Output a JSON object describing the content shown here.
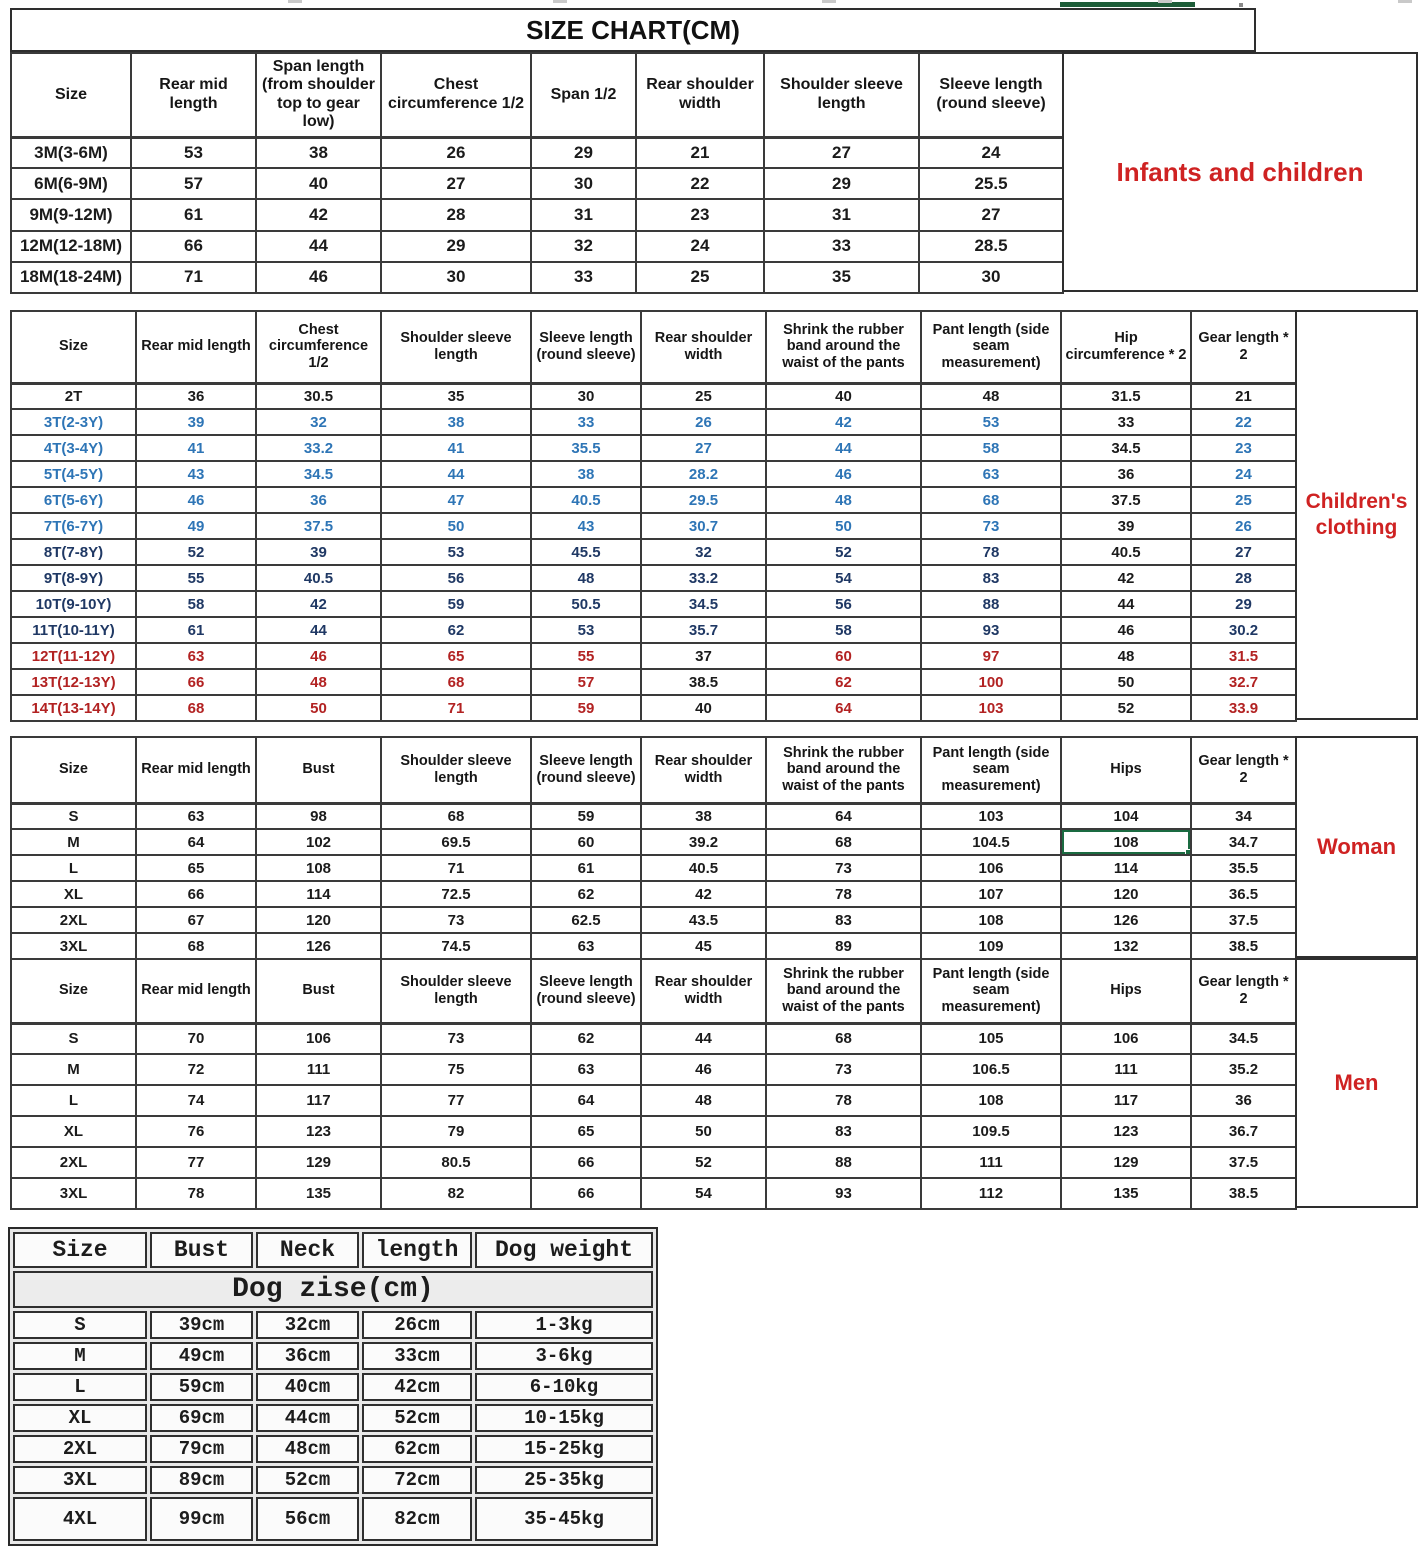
{
  "size_chart_title": "SIZE CHART(CM)",
  "colors": {
    "black": "#1b1b1b",
    "blue": "#2e75b6",
    "navy": "#1f3864",
    "red": "#b22222"
  },
  "infants": {
    "label": "Infants and children",
    "headers": [
      "Size",
      "Rear mid length",
      "Span length (from shoulder top to gear low)",
      "Chest circumference 1/2",
      "Span 1/2",
      "Rear shoulder width",
      "Shoulder sleeve length",
      "Sleeve length (round sleeve)"
    ],
    "rows": [
      [
        "3M(3-6M)",
        "53",
        "38",
        "26",
        "29",
        "21",
        "27",
        "24"
      ],
      [
        "6M(6-9M)",
        "57",
        "40",
        "27",
        "30",
        "22",
        "29",
        "25.5"
      ],
      [
        "9M(9-12M)",
        "61",
        "42",
        "28",
        "31",
        "23",
        "31",
        "27"
      ],
      [
        "12M(12-18M)",
        "66",
        "44",
        "29",
        "32",
        "24",
        "33",
        "28.5"
      ],
      [
        "18M(18-24M)",
        "71",
        "46",
        "30",
        "33",
        "25",
        "35",
        "30"
      ]
    ]
  },
  "children": {
    "label": "Children's clothing",
    "headers": [
      "Size",
      "Rear mid length",
      "Chest circumference 1/2",
      "Shoulder sleeve length",
      "Sleeve length (round sleeve)",
      "Rear shoulder width",
      "Shrink the rubber band around the waist of the pants",
      "Pant length (side seam measurement)",
      "Hip circumference * 2",
      "Gear length * 2"
    ],
    "rows": [
      {
        "cells": [
          "2T",
          "36",
          "30.5",
          "35",
          "30",
          "25",
          "40",
          "48",
          "31.5",
          "21"
        ],
        "color": "black",
        "black_cols": []
      },
      {
        "cells": [
          "3T(2-3Y)",
          "39",
          "32",
          "38",
          "33",
          "26",
          "42",
          "53",
          "33",
          "22"
        ],
        "color": "blue",
        "black_cols": [
          8
        ]
      },
      {
        "cells": [
          "4T(3-4Y)",
          "41",
          "33.2",
          "41",
          "35.5",
          "27",
          "44",
          "58",
          "34.5",
          "23"
        ],
        "color": "blue",
        "black_cols": [
          8
        ]
      },
      {
        "cells": [
          "5T(4-5Y)",
          "43",
          "34.5",
          "44",
          "38",
          "28.2",
          "46",
          "63",
          "36",
          "24"
        ],
        "color": "blue",
        "black_cols": [
          8
        ]
      },
      {
        "cells": [
          "6T(5-6Y)",
          "46",
          "36",
          "47",
          "40.5",
          "29.5",
          "48",
          "68",
          "37.5",
          "25"
        ],
        "color": "blue",
        "black_cols": [
          8
        ]
      },
      {
        "cells": [
          "7T(6-7Y)",
          "49",
          "37.5",
          "50",
          "43",
          "30.7",
          "50",
          "73",
          "39",
          "26"
        ],
        "color": "blue",
        "black_cols": [
          8
        ]
      },
      {
        "cells": [
          "8T(7-8Y)",
          "52",
          "39",
          "53",
          "45.5",
          "32",
          "52",
          "78",
          "40.5",
          "27"
        ],
        "color": "navy",
        "black_cols": [
          8
        ]
      },
      {
        "cells": [
          "9T(8-9Y)",
          "55",
          "40.5",
          "56",
          "48",
          "33.2",
          "54",
          "83",
          "42",
          "28"
        ],
        "color": "navy",
        "black_cols": [
          8
        ]
      },
      {
        "cells": [
          "10T(9-10Y)",
          "58",
          "42",
          "59",
          "50.5",
          "34.5",
          "56",
          "88",
          "44",
          "29"
        ],
        "color": "navy",
        "black_cols": [
          8
        ]
      },
      {
        "cells": [
          "11T(10-11Y)",
          "61",
          "44",
          "62",
          "53",
          "35.7",
          "58",
          "93",
          "46",
          "30.2"
        ],
        "color": "navy",
        "black_cols": [
          8
        ]
      },
      {
        "cells": [
          "12T(11-12Y)",
          "63",
          "46",
          "65",
          "55",
          "37",
          "60",
          "97",
          "48",
          "31.5"
        ],
        "color": "red",
        "black_cols": [
          5,
          8
        ]
      },
      {
        "cells": [
          "13T(12-13Y)",
          "66",
          "48",
          "68",
          "57",
          "38.5",
          "62",
          "100",
          "50",
          "32.7"
        ],
        "color": "red",
        "black_cols": [
          5,
          8
        ]
      },
      {
        "cells": [
          "14T(13-14Y)",
          "68",
          "50",
          "71",
          "59",
          "40",
          "64",
          "103",
          "52",
          "33.9"
        ],
        "color": "red",
        "black_cols": [
          5,
          8
        ]
      }
    ]
  },
  "woman": {
    "label": "Woman",
    "headers": [
      "Size",
      "Rear mid length",
      "Bust",
      "Shoulder sleeve length",
      "Sleeve length (round sleeve)",
      "Rear shoulder width",
      "Shrink the rubber band around the waist of the pants",
      "Pant length (side seam measurement)",
      "Hips",
      "Gear length * 2"
    ],
    "rows": [
      [
        "S",
        "63",
        "98",
        "68",
        "59",
        "38",
        "64",
        "103",
        "104",
        "34"
      ],
      [
        "M",
        "64",
        "102",
        "69.5",
        "60",
        "39.2",
        "68",
        "104.5",
        "108",
        "34.7"
      ],
      [
        "L",
        "65",
        "108",
        "71",
        "61",
        "40.5",
        "73",
        "106",
        "114",
        "35.5"
      ],
      [
        "XL",
        "66",
        "114",
        "72.5",
        "62",
        "42",
        "78",
        "107",
        "120",
        "36.5"
      ],
      [
        "2XL",
        "67",
        "120",
        "73",
        "62.5",
        "43.5",
        "83",
        "108",
        "126",
        "37.5"
      ],
      [
        "3XL",
        "68",
        "126",
        "74.5",
        "63",
        "45",
        "89",
        "109",
        "132",
        "38.5"
      ]
    ],
    "selected_cell": {
      "row": 1,
      "col": 8
    }
  },
  "men": {
    "label": "Men",
    "headers": [
      "Size",
      "Rear mid length",
      "Bust",
      "Shoulder sleeve length",
      "Sleeve length (round sleeve)",
      "Rear shoulder width",
      "Shrink the rubber band around the waist of the pants",
      "Pant length (side seam measurement)",
      "Hips",
      "Gear length * 2"
    ],
    "rows": [
      [
        "S",
        "70",
        "106",
        "73",
        "62",
        "44",
        "68",
        "105",
        "106",
        "34.5"
      ],
      [
        "M",
        "72",
        "111",
        "75",
        "63",
        "46",
        "73",
        "106.5",
        "111",
        "35.2"
      ],
      [
        "L",
        "74",
        "117",
        "77",
        "64",
        "48",
        "78",
        "108",
        "117",
        "36"
      ],
      [
        "XL",
        "76",
        "123",
        "79",
        "65",
        "50",
        "83",
        "109.5",
        "123",
        "36.7"
      ],
      [
        "2XL",
        "77",
        "129",
        "80.5",
        "66",
        "52",
        "88",
        "111",
        "129",
        "37.5"
      ],
      [
        "3XL",
        "78",
        "135",
        "82",
        "66",
        "54",
        "93",
        "112",
        "135",
        "38.5"
      ]
    ]
  },
  "dog": {
    "title": "Dog zise(cm)",
    "headers": [
      "Size",
      "Bust",
      "Neck",
      "length",
      "Dog weight"
    ],
    "rows": [
      [
        "S",
        "39cm",
        "32cm",
        "26cm",
        "1-3kg"
      ],
      [
        "M",
        "49cm",
        "36cm",
        "33cm",
        "3-6kg"
      ],
      [
        "L",
        "59cm",
        "40cm",
        "42cm",
        "6-10kg"
      ],
      [
        "XL",
        "69cm",
        "44cm",
        "52cm",
        "10-15kg"
      ],
      [
        "2XL",
        "79cm",
        "48cm",
        "62cm",
        "15-25kg"
      ],
      [
        "3XL",
        "89cm",
        "52cm",
        "72cm",
        "25-35kg"
      ],
      [
        "4XL",
        "99cm",
        "56cm",
        "82cm",
        "35-45kg"
      ]
    ]
  }
}
